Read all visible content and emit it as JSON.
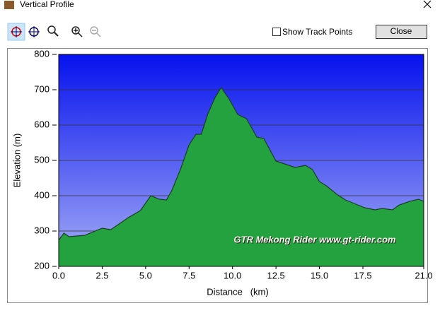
{
  "window": {
    "title": "Vertical Profile"
  },
  "toolbar": {
    "checkbox_label": "Show Track Points",
    "button_label": "Close"
  },
  "chart_data": {
    "type": "area",
    "x_label": "Distance   (km)",
    "y_label": "Elevation (m)",
    "annotation": "GTR Mekong Rider www.gt-rider.com",
    "x": [
      0,
      0.3,
      0.6,
      1.5,
      2.5,
      3.0,
      4.0,
      4.7,
      5.3,
      5.8,
      6.2,
      6.5,
      7.0,
      7.5,
      7.9,
      8.2,
      8.6,
      9.0,
      9.35,
      9.8,
      10.3,
      10.8,
      11.4,
      11.8,
      12.5,
      13.0,
      13.6,
      14.2,
      14.6,
      15.0,
      15.4,
      16.0,
      16.5,
      17.0,
      17.6,
      18.2,
      18.6,
      19.2,
      19.6,
      20.2,
      20.7,
      21.0
    ],
    "values": [
      274,
      294,
      284,
      288,
      308,
      304,
      338,
      358,
      400,
      390,
      388,
      414,
      474,
      544,
      574,
      574,
      634,
      678,
      706,
      674,
      630,
      618,
      566,
      562,
      498,
      490,
      480,
      486,
      474,
      440,
      428,
      404,
      388,
      378,
      366,
      360,
      364,
      360,
      374,
      384,
      390,
      384
    ],
    "color": "#24a23f",
    "line_color": "#1b3f1f",
    "xlim": [
      0,
      21
    ],
    "ylim": [
      200,
      800
    ],
    "xticks": [
      {
        "value": 0,
        "label": "0.0"
      },
      {
        "value": 2.5,
        "label": "2.5"
      },
      {
        "value": 5,
        "label": "5.0"
      },
      {
        "value": 7.5,
        "label": "7.5"
      },
      {
        "value": 10,
        "label": "10.0"
      },
      {
        "value": 12.5,
        "label": "12.5"
      },
      {
        "value": 15,
        "label": "15.0"
      },
      {
        "value": 17.5,
        "label": "17.5"
      },
      {
        "value": 21,
        "label": "21.0"
      }
    ],
    "yticks": [
      200,
      300,
      400,
      500,
      600,
      700,
      800
    ],
    "grid": true
  }
}
